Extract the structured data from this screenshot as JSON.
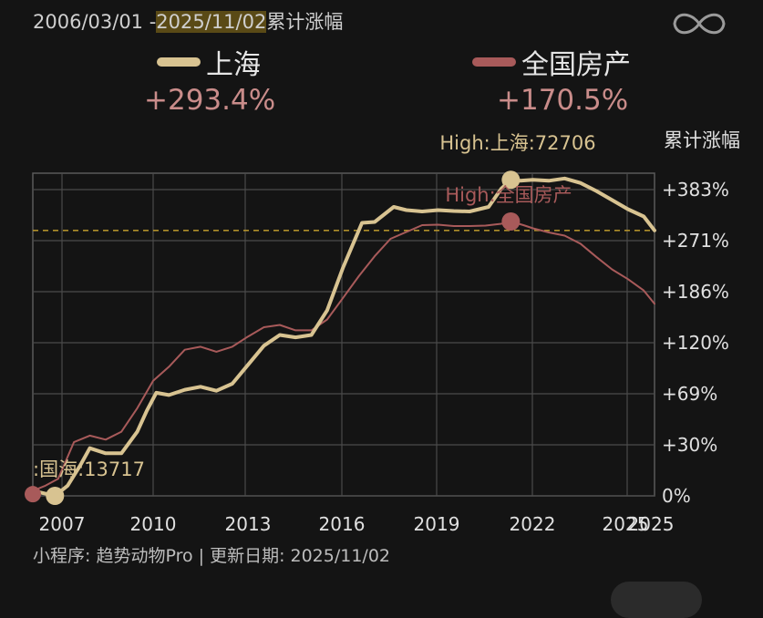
{
  "header": {
    "date_start": "2006/03/01 -",
    "date_end": "2025/11/02",
    "metric": "累计涨幅"
  },
  "legend": [
    {
      "name": "上海",
      "pct": "+293.4%",
      "color": "#d8c391"
    },
    {
      "name": "全国房产",
      "pct": "+170.5%",
      "color": "#a85a5a"
    }
  ],
  "icons": {
    "top_right": "infinity-icon"
  },
  "footer": "小程序: 趋势动物Pro | 更新日期: 2025/11/02",
  "chart_data": {
    "type": "line",
    "ylabel": "累计涨幅",
    "x_ticks": [
      "2007",
      "2010",
      "2013",
      "2016",
      "2019",
      "2022",
      "2025",
      "2025"
    ],
    "y_ticks": [
      "0%",
      "+30%",
      "+69%",
      "+120%",
      "+186%",
      "+271%",
      "+383%"
    ],
    "reference_line": {
      "y": 293.4,
      "color": "#b08f2a",
      "style": "dashed"
    },
    "annotations": [
      {
        "text": "High:上海:72706",
        "series": "上海",
        "x": 2021.3,
        "y": 405
      },
      {
        "text": "High:全国房产",
        "series": "全国房产",
        "x": 2021.3,
        "y": 313
      },
      {
        "text": ":国海:13717",
        "series": "上海",
        "x": 2006.9,
        "y": 0
      }
    ],
    "series": [
      {
        "name": "上海",
        "color": "#d8c391",
        "points": [
          [
            2006.2,
            3
          ],
          [
            2006.9,
            0
          ],
          [
            2007.3,
            6
          ],
          [
            2007.7,
            18
          ],
          [
            2008.0,
            28
          ],
          [
            2008.5,
            25
          ],
          [
            2009.0,
            25
          ],
          [
            2009.5,
            40
          ],
          [
            2009.8,
            56
          ],
          [
            2010.1,
            70
          ],
          [
            2010.5,
            68
          ],
          [
            2011.0,
            73
          ],
          [
            2011.5,
            76
          ],
          [
            2012.0,
            72
          ],
          [
            2012.5,
            79
          ],
          [
            2013.0,
            98
          ],
          [
            2013.5,
            117
          ],
          [
            2014.0,
            130
          ],
          [
            2014.5,
            127
          ],
          [
            2015.0,
            130
          ],
          [
            2015.5,
            162
          ],
          [
            2016.0,
            226
          ],
          [
            2016.6,
            310
          ],
          [
            2017.0,
            312
          ],
          [
            2017.6,
            345
          ],
          [
            2018.0,
            338
          ],
          [
            2018.5,
            335
          ],
          [
            2019.0,
            338
          ],
          [
            2019.5,
            336
          ],
          [
            2020.0,
            335
          ],
          [
            2020.6,
            345
          ],
          [
            2021.0,
            385
          ],
          [
            2021.3,
            405
          ],
          [
            2021.6,
            403
          ],
          [
            2022.0,
            405
          ],
          [
            2022.5,
            403
          ],
          [
            2023.0,
            408
          ],
          [
            2023.5,
            398
          ],
          [
            2024.0,
            380
          ],
          [
            2024.5,
            360
          ],
          [
            2025.0,
            340
          ],
          [
            2025.5,
            324
          ],
          [
            2025.84,
            293.4
          ]
        ]
      },
      {
        "name": "全国房产",
        "color": "#a85a5a",
        "points": [
          [
            2006.2,
            3
          ],
          [
            2006.6,
            6
          ],
          [
            2007.0,
            10
          ],
          [
            2007.5,
            32
          ],
          [
            2008.0,
            37
          ],
          [
            2008.5,
            34
          ],
          [
            2009.0,
            40
          ],
          [
            2009.5,
            58
          ],
          [
            2010.0,
            82
          ],
          [
            2010.5,
            96
          ],
          [
            2011.0,
            113
          ],
          [
            2011.5,
            116
          ],
          [
            2012.0,
            111
          ],
          [
            2012.5,
            116
          ],
          [
            2013.0,
            128
          ],
          [
            2013.5,
            140
          ],
          [
            2014.0,
            143
          ],
          [
            2014.5,
            136
          ],
          [
            2015.0,
            136
          ],
          [
            2015.5,
            150
          ],
          [
            2016.0,
            178
          ],
          [
            2016.5,
            212
          ],
          [
            2017.0,
            245
          ],
          [
            2017.5,
            275
          ],
          [
            2018.0,
            290
          ],
          [
            2018.5,
            305
          ],
          [
            2019.0,
            306
          ],
          [
            2019.5,
            303
          ],
          [
            2020.0,
            303
          ],
          [
            2020.5,
            304
          ],
          [
            2021.0,
            308
          ],
          [
            2021.3,
            313
          ],
          [
            2021.7,
            305
          ],
          [
            2022.0,
            298
          ],
          [
            2022.5,
            289
          ],
          [
            2023.0,
            282
          ],
          [
            2023.5,
            266
          ],
          [
            2024.0,
            244
          ],
          [
            2024.5,
            223
          ],
          [
            2025.0,
            207
          ],
          [
            2025.5,
            188
          ],
          [
            2025.84,
            170.5
          ]
        ]
      }
    ]
  }
}
